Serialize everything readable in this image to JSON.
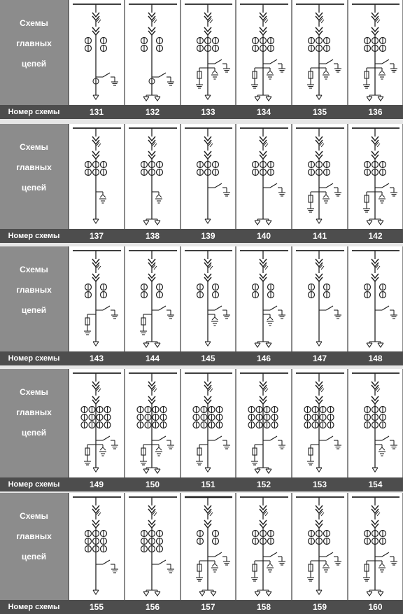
{
  "row_label_lines": [
    "Схемы",
    "главных",
    "цепей"
  ],
  "number_label": "Номер схемы",
  "blocks": [
    {
      "schemes": [
        {
          "number": "131",
          "variant": "A"
        },
        {
          "number": "132",
          "variant": "B"
        },
        {
          "number": "133",
          "variant": "C"
        },
        {
          "number": "134",
          "variant": "D"
        },
        {
          "number": "135",
          "variant": "C"
        },
        {
          "number": "136",
          "variant": "D"
        }
      ]
    },
    {
      "schemes": [
        {
          "number": "137",
          "variant": "E"
        },
        {
          "number": "138",
          "variant": "F"
        },
        {
          "number": "139",
          "variant": "G"
        },
        {
          "number": "140",
          "variant": "H"
        },
        {
          "number": "141",
          "variant": "C"
        },
        {
          "number": "142",
          "variant": "D"
        }
      ]
    },
    {
      "schemes": [
        {
          "number": "143",
          "variant": "I"
        },
        {
          "number": "144",
          "variant": "J"
        },
        {
          "number": "145",
          "variant": "K"
        },
        {
          "number": "146",
          "variant": "L"
        },
        {
          "number": "147",
          "variant": "M"
        },
        {
          "number": "148",
          "variant": "N"
        }
      ]
    },
    {
      "schemes": [
        {
          "number": "149",
          "variant": "O"
        },
        {
          "number": "150",
          "variant": "P"
        },
        {
          "number": "151",
          "variant": "Q"
        },
        {
          "number": "152",
          "variant": "R"
        },
        {
          "number": "153",
          "variant": "Q"
        },
        {
          "number": "154",
          "variant": "S"
        }
      ]
    },
    {
      "schemes": [
        {
          "number": "155",
          "variant": "T"
        },
        {
          "number": "156",
          "variant": "U"
        },
        {
          "number": "157",
          "variant": "V"
        },
        {
          "number": "158",
          "variant": "D"
        },
        {
          "number": "159",
          "variant": "C"
        },
        {
          "number": "160",
          "variant": "D"
        }
      ]
    }
  ]
}
